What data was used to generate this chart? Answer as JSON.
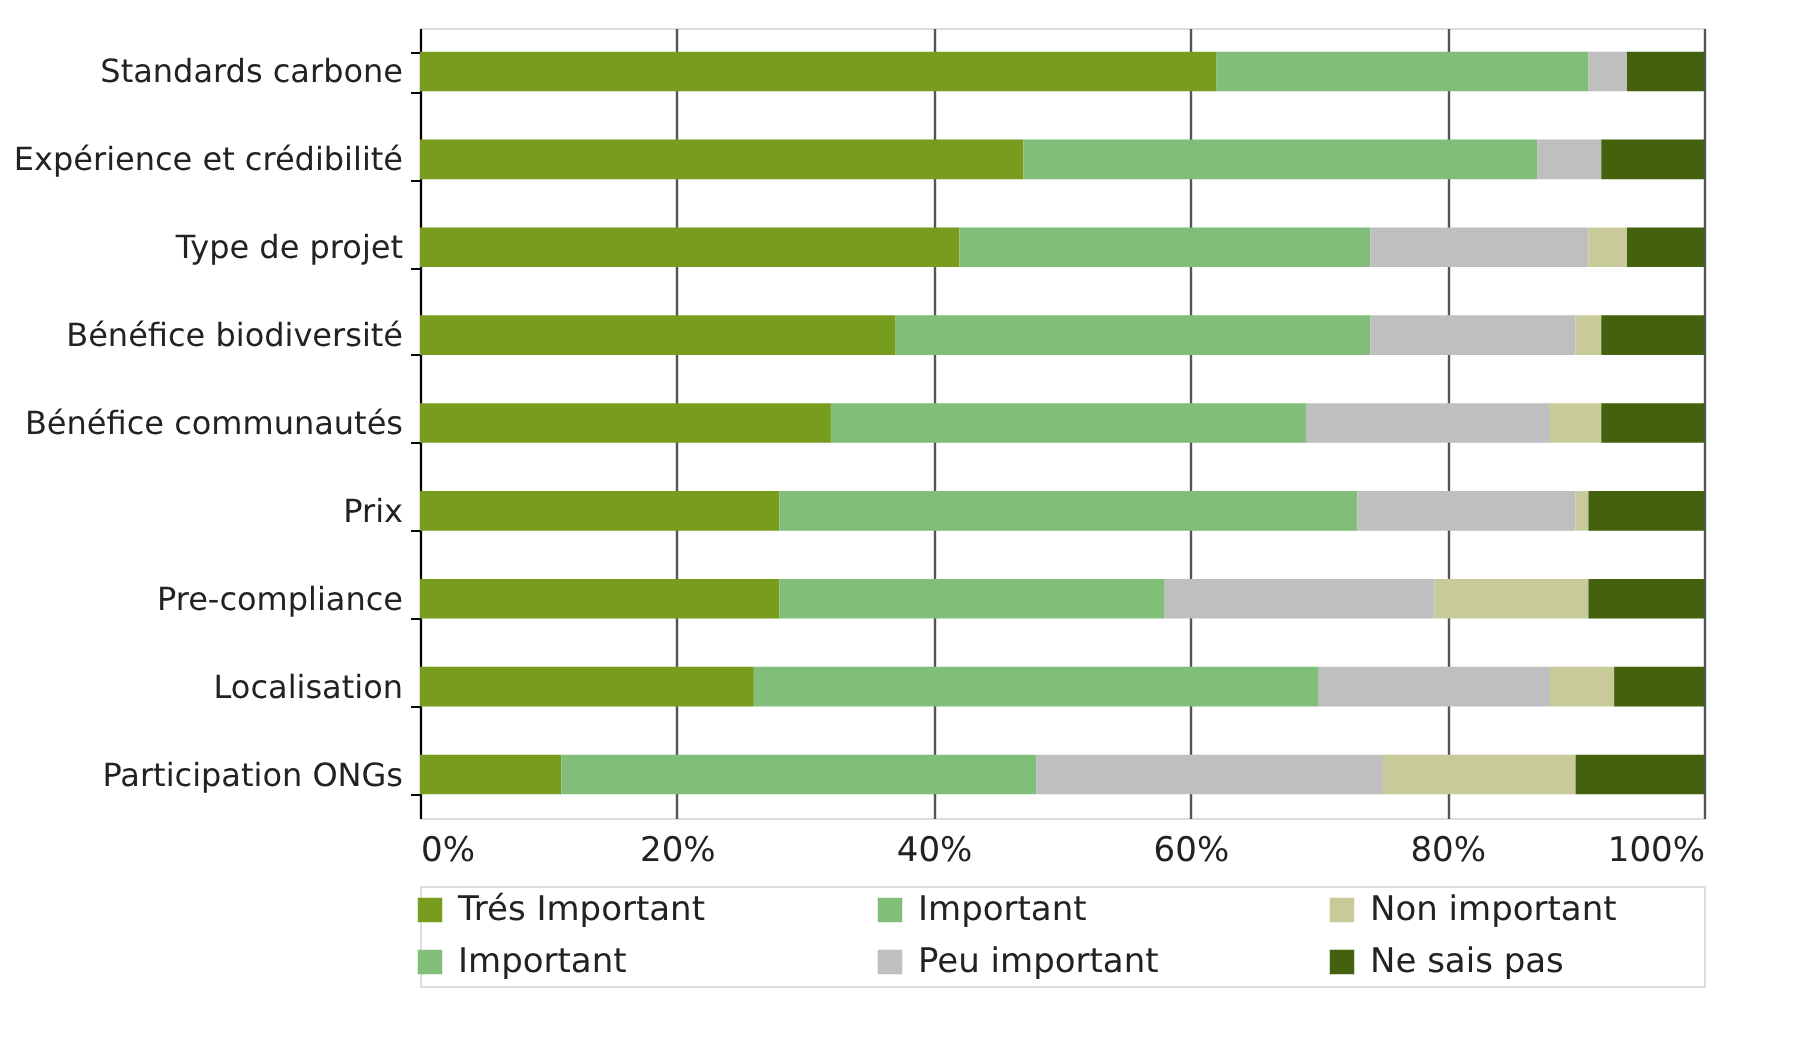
{
  "chart_data": {
    "type": "bar",
    "orientation": "horizontal",
    "stacked": true,
    "categories": [
      "Standards carbone",
      "Expérience et crédibilité",
      "Type de projet",
      "Bénéfice biodiversité",
      "Bénéfice communautés",
      "Prix",
      "Pre-compliance",
      "Localisation",
      "Participation ONGs"
    ],
    "series": [
      {
        "name": "Trés Important",
        "color": "#779c1e",
        "values": [
          62,
          47,
          42,
          37,
          32,
          28,
          28,
          26,
          11
        ]
      },
      {
        "name": "Important",
        "color": "#80be7a",
        "values": [
          null,
          null,
          null,
          null,
          null,
          null,
          null,
          null,
          null
        ]
      },
      {
        "name": "Important",
        "color": "#80be7a",
        "values": [
          29,
          40,
          32,
          37,
          37,
          45,
          30,
          44,
          37
        ]
      },
      {
        "name": "Peu important",
        "color": "#bfbfbf",
        "values": [
          3,
          5,
          17,
          16,
          19,
          17,
          21,
          18,
          27
        ]
      },
      {
        "name": "Non important",
        "color": "#c8ca9a",
        "values": [
          0,
          0,
          3,
          2,
          4,
          1,
          12,
          5,
          15
        ]
      },
      {
        "name": "Ne sais pas",
        "color": "#44620d",
        "values": [
          6,
          8,
          6,
          8,
          8,
          9,
          9,
          7,
          10
        ]
      }
    ],
    "xlim": [
      0,
      100
    ],
    "xticks": [
      {
        "value": 0,
        "label": "0%"
      },
      {
        "value": 20,
        "label": "20%"
      },
      {
        "value": 40,
        "label": "40%"
      },
      {
        "value": 60,
        "label": "60%"
      },
      {
        "value": 80,
        "label": "80%"
      },
      {
        "value": 100,
        "label": "100%"
      }
    ],
    "grid": "x",
    "legend": "bottom"
  }
}
